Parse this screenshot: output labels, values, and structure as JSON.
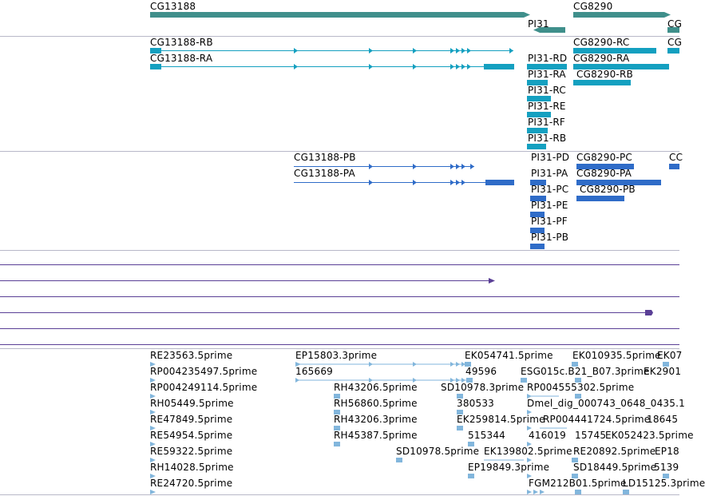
{
  "colors": {
    "gene": "#3f8f8b",
    "cdna": "#14a0c0",
    "protein": "#2f6cc8",
    "other": "#5a3f96",
    "est": "#82b6dc",
    "separator": "#b8b8c8"
  },
  "tracks": {
    "genes": [
      {
        "label": "CG13188"
      },
      {
        "label": "PI31"
      },
      {
        "label": "CG8290"
      },
      {
        "label": "CG"
      }
    ],
    "transcripts": [
      {
        "label": "CG13188-RB"
      },
      {
        "label": "CG13188-RA"
      },
      {
        "label": "CG8290-RC"
      },
      {
        "label": "CG8290-RA"
      },
      {
        "label": "CG8290-RB"
      },
      {
        "label": "CG"
      },
      {
        "label": "PI31-RD"
      },
      {
        "label": "PI31-RA"
      },
      {
        "label": "PI31-RC"
      },
      {
        "label": "PI31-RE"
      },
      {
        "label": "PI31-RF"
      },
      {
        "label": "PI31-RB"
      }
    ],
    "proteins": [
      {
        "label": "CG13188-PB"
      },
      {
        "label": "CG13188-PA"
      },
      {
        "label": "PI31-PD"
      },
      {
        "label": "PI31-PA"
      },
      {
        "label": "PI31-PC"
      },
      {
        "label": "PI31-PE"
      },
      {
        "label": "PI31-PF"
      },
      {
        "label": "PI31-PB"
      },
      {
        "label": "CG8290-PC"
      },
      {
        "label": "CG8290-PA"
      },
      {
        "label": "CG8290-PB"
      },
      {
        "label": "CC"
      }
    ],
    "ests": [
      {
        "label": "RE23563.5prime"
      },
      {
        "label": "RP004235497.5prime"
      },
      {
        "label": "RP004249114.5prime"
      },
      {
        "label": "RH05449.5prime"
      },
      {
        "label": "RE47849.5prime"
      },
      {
        "label": "RE54954.5prime"
      },
      {
        "label": "RE59322.5prime"
      },
      {
        "label": "RH14028.5prime"
      },
      {
        "label": "RE24720.5prime"
      },
      {
        "label": "EP15803.3prime"
      },
      {
        "label": "165669"
      },
      {
        "label": "RH43206.5prime"
      },
      {
        "label": "RH56860.5prime"
      },
      {
        "label": "RH43206.3prime"
      },
      {
        "label": "RH45387.5prime"
      },
      {
        "label": "SD10978.5prime"
      },
      {
        "label": "EK054741.5prime"
      },
      {
        "label": "49596"
      },
      {
        "label": "SD10978.3prime"
      },
      {
        "label": "380533"
      },
      {
        "label": "EK259814.5prime"
      },
      {
        "label": "515344"
      },
      {
        "label": "EK139802.5prime"
      },
      {
        "label": "EP19849.3prime"
      },
      {
        "label": "ESG015c.B21_B07.3prime"
      },
      {
        "label": "RP004555302.5prime"
      },
      {
        "label": "Dmel_dig_000743_0648_0435.1"
      },
      {
        "label": "RP004441724.5prime"
      },
      {
        "label": "416019"
      },
      {
        "label": "15745"
      },
      {
        "label": "EK052423.5prime"
      },
      {
        "label": "RE20892.5prime"
      },
      {
        "label": "SD18449.5prime"
      },
      {
        "label": "FGM212B01.5prime"
      },
      {
        "label": "LD15125.3prime"
      },
      {
        "label": "EK010935.5prime"
      },
      {
        "label": "EK07"
      },
      {
        "label": "EK2901"
      },
      {
        "label": "18645"
      },
      {
        "label": "EP18"
      },
      {
        "label": "5139"
      }
    ]
  }
}
